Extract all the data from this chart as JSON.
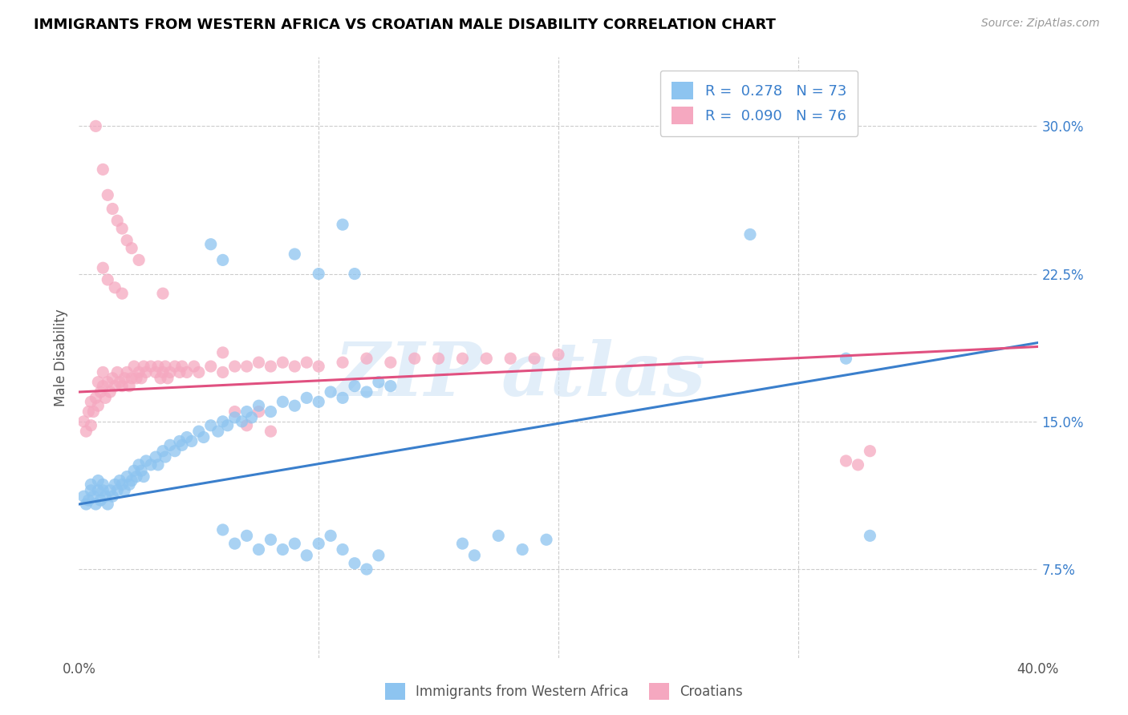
{
  "title": "IMMIGRANTS FROM WESTERN AFRICA VS CROATIAN MALE DISABILITY CORRELATION CHART",
  "source": "Source: ZipAtlas.com",
  "ylabel": "Male Disability",
  "right_yticks": [
    "30.0%",
    "22.5%",
    "15.0%",
    "7.5%"
  ],
  "right_ytick_vals": [
    0.3,
    0.225,
    0.15,
    0.075
  ],
  "xlim": [
    0.0,
    0.4
  ],
  "ylim": [
    0.03,
    0.335
  ],
  "color_blue": "#8DC4F0",
  "color_pink": "#F5A8C0",
  "blue_scatter": [
    [
      0.002,
      0.112
    ],
    [
      0.003,
      0.108
    ],
    [
      0.004,
      0.11
    ],
    [
      0.005,
      0.115
    ],
    [
      0.005,
      0.118
    ],
    [
      0.006,
      0.112
    ],
    [
      0.007,
      0.108
    ],
    [
      0.008,
      0.115
    ],
    [
      0.008,
      0.12
    ],
    [
      0.009,
      0.11
    ],
    [
      0.01,
      0.115
    ],
    [
      0.01,
      0.118
    ],
    [
      0.011,
      0.112
    ],
    [
      0.012,
      0.108
    ],
    [
      0.013,
      0.115
    ],
    [
      0.014,
      0.112
    ],
    [
      0.015,
      0.118
    ],
    [
      0.016,
      0.115
    ],
    [
      0.017,
      0.12
    ],
    [
      0.018,
      0.118
    ],
    [
      0.019,
      0.115
    ],
    [
      0.02,
      0.122
    ],
    [
      0.021,
      0.118
    ],
    [
      0.022,
      0.12
    ],
    [
      0.023,
      0.125
    ],
    [
      0.024,
      0.122
    ],
    [
      0.025,
      0.128
    ],
    [
      0.026,
      0.125
    ],
    [
      0.027,
      0.122
    ],
    [
      0.028,
      0.13
    ],
    [
      0.03,
      0.128
    ],
    [
      0.032,
      0.132
    ],
    [
      0.033,
      0.128
    ],
    [
      0.035,
      0.135
    ],
    [
      0.036,
      0.132
    ],
    [
      0.038,
      0.138
    ],
    [
      0.04,
      0.135
    ],
    [
      0.042,
      0.14
    ],
    [
      0.043,
      0.138
    ],
    [
      0.045,
      0.142
    ],
    [
      0.047,
      0.14
    ],
    [
      0.05,
      0.145
    ],
    [
      0.052,
      0.142
    ],
    [
      0.055,
      0.148
    ],
    [
      0.058,
      0.145
    ],
    [
      0.06,
      0.15
    ],
    [
      0.062,
      0.148
    ],
    [
      0.065,
      0.152
    ],
    [
      0.068,
      0.15
    ],
    [
      0.07,
      0.155
    ],
    [
      0.072,
      0.152
    ],
    [
      0.075,
      0.158
    ],
    [
      0.08,
      0.155
    ],
    [
      0.085,
      0.16
    ],
    [
      0.09,
      0.158
    ],
    [
      0.095,
      0.162
    ],
    [
      0.1,
      0.16
    ],
    [
      0.105,
      0.165
    ],
    [
      0.11,
      0.162
    ],
    [
      0.115,
      0.168
    ],
    [
      0.12,
      0.165
    ],
    [
      0.125,
      0.17
    ],
    [
      0.13,
      0.168
    ],
    [
      0.055,
      0.24
    ],
    [
      0.06,
      0.232
    ],
    [
      0.09,
      0.235
    ],
    [
      0.1,
      0.225
    ],
    [
      0.115,
      0.225
    ],
    [
      0.11,
      0.25
    ],
    [
      0.28,
      0.245
    ],
    [
      0.06,
      0.095
    ],
    [
      0.065,
      0.088
    ],
    [
      0.07,
      0.092
    ],
    [
      0.075,
      0.085
    ],
    [
      0.08,
      0.09
    ],
    [
      0.085,
      0.085
    ],
    [
      0.09,
      0.088
    ],
    [
      0.095,
      0.082
    ],
    [
      0.1,
      0.088
    ],
    [
      0.105,
      0.092
    ],
    [
      0.11,
      0.085
    ],
    [
      0.115,
      0.078
    ],
    [
      0.12,
      0.075
    ],
    [
      0.125,
      0.082
    ],
    [
      0.16,
      0.088
    ],
    [
      0.165,
      0.082
    ],
    [
      0.175,
      0.092
    ],
    [
      0.185,
      0.085
    ],
    [
      0.195,
      0.09
    ],
    [
      0.32,
      0.182
    ],
    [
      0.33,
      0.092
    ]
  ],
  "pink_scatter": [
    [
      0.002,
      0.15
    ],
    [
      0.003,
      0.145
    ],
    [
      0.004,
      0.155
    ],
    [
      0.005,
      0.148
    ],
    [
      0.005,
      0.16
    ],
    [
      0.006,
      0.155
    ],
    [
      0.007,
      0.162
    ],
    [
      0.008,
      0.158
    ],
    [
      0.008,
      0.17
    ],
    [
      0.009,
      0.165
    ],
    [
      0.01,
      0.168
    ],
    [
      0.01,
      0.175
    ],
    [
      0.011,
      0.162
    ],
    [
      0.012,
      0.17
    ],
    [
      0.013,
      0.165
    ],
    [
      0.014,
      0.172
    ],
    [
      0.015,
      0.168
    ],
    [
      0.016,
      0.175
    ],
    [
      0.017,
      0.17
    ],
    [
      0.018,
      0.168
    ],
    [
      0.019,
      0.172
    ],
    [
      0.02,
      0.175
    ],
    [
      0.021,
      0.168
    ],
    [
      0.022,
      0.172
    ],
    [
      0.023,
      0.178
    ],
    [
      0.024,
      0.172
    ],
    [
      0.025,
      0.175
    ],
    [
      0.026,
      0.172
    ],
    [
      0.027,
      0.178
    ],
    [
      0.028,
      0.175
    ],
    [
      0.03,
      0.178
    ],
    [
      0.032,
      0.175
    ],
    [
      0.033,
      0.178
    ],
    [
      0.034,
      0.172
    ],
    [
      0.035,
      0.175
    ],
    [
      0.036,
      0.178
    ],
    [
      0.037,
      0.172
    ],
    [
      0.038,
      0.175
    ],
    [
      0.04,
      0.178
    ],
    [
      0.042,
      0.175
    ],
    [
      0.043,
      0.178
    ],
    [
      0.045,
      0.175
    ],
    [
      0.048,
      0.178
    ],
    [
      0.05,
      0.175
    ],
    [
      0.055,
      0.178
    ],
    [
      0.06,
      0.175
    ],
    [
      0.065,
      0.178
    ],
    [
      0.07,
      0.178
    ],
    [
      0.075,
      0.18
    ],
    [
      0.08,
      0.178
    ],
    [
      0.085,
      0.18
    ],
    [
      0.09,
      0.178
    ],
    [
      0.095,
      0.18
    ],
    [
      0.1,
      0.178
    ],
    [
      0.11,
      0.18
    ],
    [
      0.12,
      0.182
    ],
    [
      0.13,
      0.18
    ],
    [
      0.14,
      0.182
    ],
    [
      0.15,
      0.182
    ],
    [
      0.16,
      0.182
    ],
    [
      0.17,
      0.182
    ],
    [
      0.18,
      0.182
    ],
    [
      0.19,
      0.182
    ],
    [
      0.2,
      0.184
    ],
    [
      0.007,
      0.3
    ],
    [
      0.01,
      0.278
    ],
    [
      0.012,
      0.265
    ],
    [
      0.014,
      0.258
    ],
    [
      0.016,
      0.252
    ],
    [
      0.018,
      0.248
    ],
    [
      0.02,
      0.242
    ],
    [
      0.022,
      0.238
    ],
    [
      0.025,
      0.232
    ],
    [
      0.01,
      0.228
    ],
    [
      0.012,
      0.222
    ],
    [
      0.015,
      0.218
    ],
    [
      0.018,
      0.215
    ],
    [
      0.035,
      0.215
    ],
    [
      0.06,
      0.185
    ],
    [
      0.065,
      0.155
    ],
    [
      0.07,
      0.148
    ],
    [
      0.075,
      0.155
    ],
    [
      0.08,
      0.145
    ],
    [
      0.32,
      0.13
    ],
    [
      0.325,
      0.128
    ],
    [
      0.33,
      0.135
    ]
  ],
  "blue_line_x": [
    0.0,
    0.4
  ],
  "blue_line_y": [
    0.108,
    0.19
  ],
  "pink_line_x": [
    0.0,
    0.4
  ],
  "pink_line_y": [
    0.165,
    0.188
  ]
}
